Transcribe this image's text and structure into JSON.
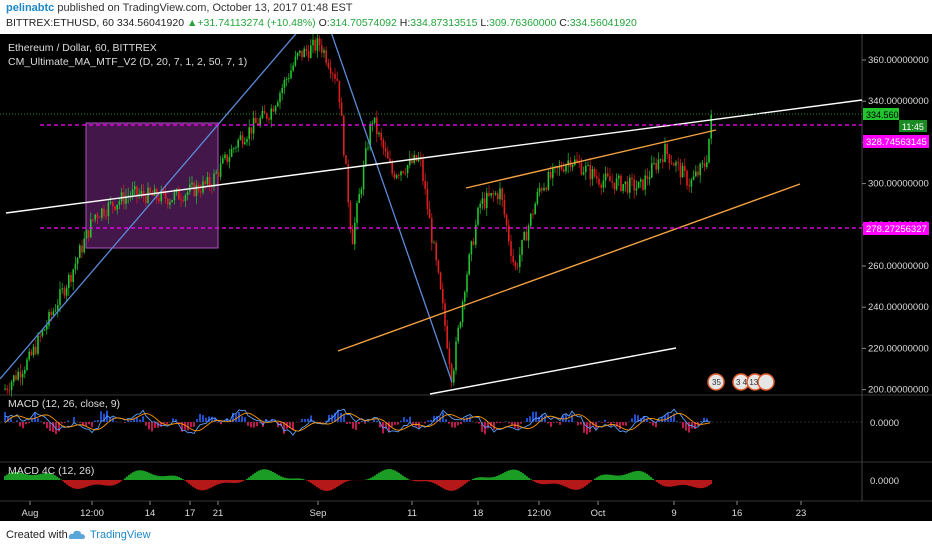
{
  "header": {
    "user": "pelinabtc",
    "published_text": "published on TradingView.com, October 13, 2017 01:48 EST",
    "symbol": "BITTREX:ETHUSD, 60",
    "price": "334.56041920",
    "change": "+31.74113274 (+10.48%)",
    "o_label": "O:",
    "o": "314.70574092",
    "h_label": "H:",
    "h": "334.87313515",
    "l_label": "L:",
    "l": "309.76360000",
    "c_label": "C:",
    "c": "334.56041920"
  },
  "legend": {
    "title": "Ethereum / Dollar, 60, BITTREX",
    "indicator": "CM_Ultimate_MA_MTF_V2 (D, 20, 7, 1, 2, 50, 7, 1)",
    "macd": "MACD (12, 26, close, 9)",
    "macd4c": "MACD 4C (12, 26)"
  },
  "price_axis": [
    "360.00000000",
    "340.00000000",
    "320.00000000",
    "300.00000000",
    "280.00000000",
    "260.00000000",
    "240.00000000",
    "220.00000000",
    "200.00000000"
  ],
  "price_tags": {
    "last": "334.56041920",
    "countdown": "11:45",
    "level_high": "328.74563145",
    "level_low": "278.27256327"
  },
  "macd_axis": "0.0000",
  "macd4c_axis": "0.0000",
  "time_axis": [
    "Aug",
    "12:00",
    "14",
    "17",
    "21",
    "Sep",
    "11",
    "18",
    "12:00",
    "Oct",
    "9",
    "16",
    "23"
  ],
  "badges": {
    "left": "35",
    "right": "3 4 13"
  },
  "footer": {
    "created": "Created with",
    "brand": "TradingView"
  },
  "colors": {
    "up": "#22c32e",
    "down": "#e01e1e",
    "level": "#ff00ff",
    "channel": "#f4a142",
    "trend": "#ffffff",
    "fan": "#5b8bd9",
    "box": "#9c3fa6",
    "macd_line": "#5aa0ff",
    "signal_line": "#ff9800",
    "accent": "#1e88c9"
  },
  "chart_data": {
    "type": "candlestick",
    "symbol": "ETHUSD",
    "exchange": "BITTREX",
    "interval": "60",
    "ylim": [
      195,
      370
    ],
    "open": 314.70574092,
    "high": 334.87313515,
    "low": 309.7636,
    "close": 334.5604192,
    "horizontal_levels": [
      328.74563145,
      278.27256327
    ]
  }
}
